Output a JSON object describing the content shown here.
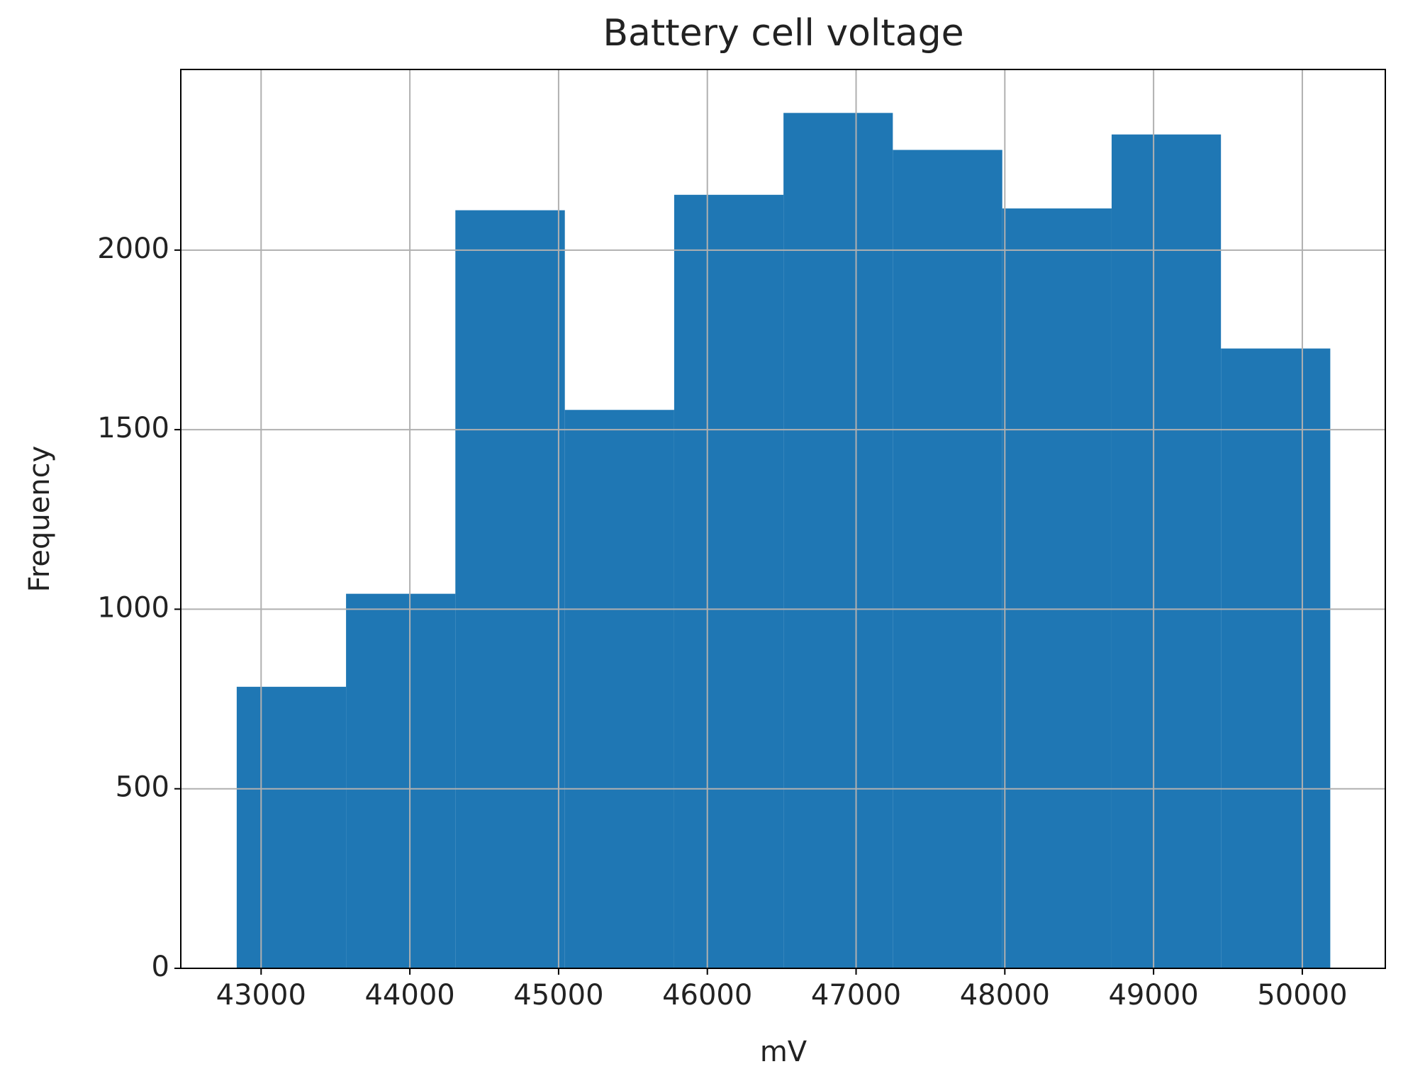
{
  "chart_data": {
    "type": "histogram",
    "title": "Battery cell voltage",
    "xlabel": "mV",
    "ylabel": "Frequency",
    "bins": [
      42836,
      43571,
      44306,
      45042,
      45777,
      46512,
      47247,
      47983,
      48718,
      49453,
      50188
    ],
    "values": [
      784,
      1043,
      2111,
      1555,
      2154,
      2382,
      2279,
      2116,
      2322,
      1726
    ],
    "color": "#1f77b4",
    "xlim": [
      42460,
      50558
    ],
    "xticks": [
      43000,
      44000,
      45000,
      46000,
      47000,
      48000,
      49000,
      50000
    ],
    "ylim": [
      0,
      2503
    ],
    "yticks": [
      0,
      500,
      1000,
      1500,
      2000
    ],
    "grid": true
  }
}
